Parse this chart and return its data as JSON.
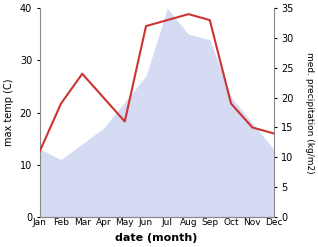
{
  "months": [
    "Jan",
    "Feb",
    "Mar",
    "Apr",
    "May",
    "Jun",
    "Jul",
    "Aug",
    "Sep",
    "Oct",
    "Nov",
    "Dec"
  ],
  "max_temp": [
    13,
    11,
    14,
    17,
    22,
    27,
    40,
    35,
    34,
    23,
    18,
    13
  ],
  "precipitation": [
    11,
    19,
    24,
    20,
    16,
    32,
    33,
    34,
    33,
    19,
    15,
    14
  ],
  "temp_fill_color": "#c8d0f0",
  "precip_line_color": "#cc3333",
  "temp_ylim": [
    0,
    40
  ],
  "precip_ylim": [
    0,
    35
  ],
  "temp_yticks": [
    0,
    10,
    20,
    30,
    40
  ],
  "precip_yticks": [
    0,
    5,
    10,
    15,
    20,
    25,
    30,
    35
  ],
  "xlabel": "date (month)",
  "ylabel_left": "max temp (C)",
  "ylabel_right": "med. precipitation (kg/m2)",
  "background_color": "#ffffff",
  "fig_width": 3.18,
  "fig_height": 2.47,
  "dpi": 100
}
